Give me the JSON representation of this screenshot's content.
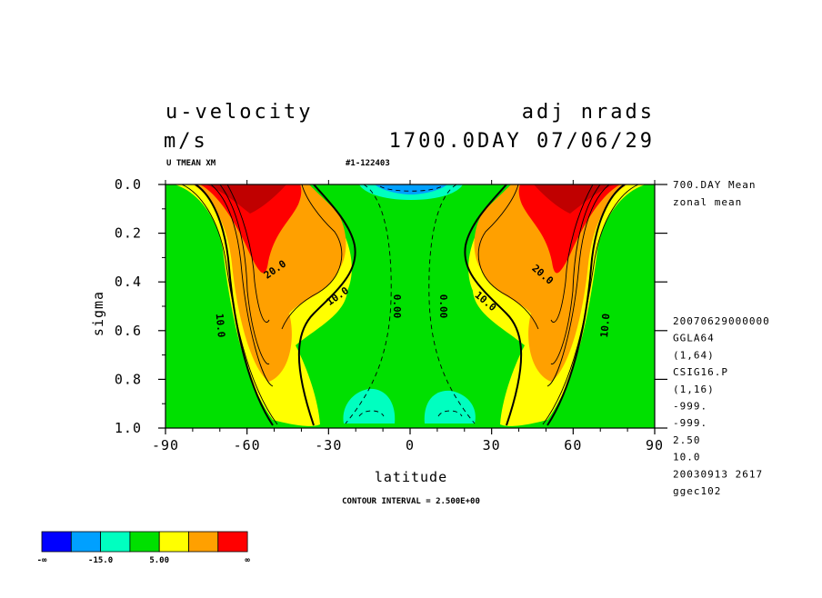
{
  "header": {
    "title": "u-velocity",
    "units": "m/s",
    "experiment": "adj nrads",
    "day_date": "1700.0DAY 07/06/29",
    "subtitle_left": "U TMEAN XM",
    "subtitle_mid": "#1-122403"
  },
  "side_info": {
    "top": [
      "700.DAY Mean",
      "zonal mean"
    ],
    "lines": [
      "20070629000000",
      "GGLA64",
      "(1,64)",
      "CSIG16.P",
      "(1,16)",
      "-999.",
      "-999.",
      "2.50",
      "10.0",
      "20030913    2617",
      "ggec102"
    ]
  },
  "footer": {
    "contour_interval": "CONTOUR INTERVAL = 2.500E+00"
  },
  "colorbar": {
    "colors": [
      "#0000ff",
      "#00a0ff",
      "#00ffc0",
      "#00e000",
      "#ffff00",
      "#ffa000",
      "#ff0000"
    ],
    "labels": [
      "-∞",
      "-15.0",
      "5.00",
      "∞"
    ]
  },
  "chart_data": {
    "type": "contour",
    "title": "u-velocity",
    "xlabel": "latitude",
    "ylabel": "sigma",
    "xlim": [
      -90,
      90
    ],
    "ylim": [
      0.0,
      1.0
    ],
    "y_inverted": true,
    "x_ticks": [
      -90,
      -60,
      -30,
      0,
      30,
      60,
      90
    ],
    "x_tick_labels": [
      "-90",
      "-60",
      "-30",
      "0",
      "30",
      "60",
      "90"
    ],
    "y_ticks": [
      0.0,
      0.2,
      0.4,
      0.6,
      0.8,
      1.0
    ],
    "y_tick_labels": [
      "0.0",
      "0.2",
      "0.4",
      "0.6",
      "0.8",
      "1.0"
    ],
    "contour_interval": 2.5,
    "contour_labels": [
      {
        "text": "20.0",
        "lat": -49,
        "sigma": 0.36
      },
      {
        "text": "10.0",
        "lat": -26,
        "sigma": 0.47
      },
      {
        "text": "10.0",
        "lat": -71,
        "sigma": 0.58
      },
      {
        "text": "0.00",
        "lat": -6,
        "sigma": 0.5
      },
      {
        "text": "0.00",
        "lat": 11,
        "sigma": 0.5
      },
      {
        "text": "10.0",
        "lat": 27,
        "sigma": 0.49
      },
      {
        "text": "20.0",
        "lat": 48,
        "sigma": 0.38
      },
      {
        "text": "10.0",
        "lat": 73,
        "sigma": 0.58
      }
    ],
    "jets": [
      {
        "lat": -55,
        "sigma": 0.03,
        "max_ms": 40
      },
      {
        "lat": 55,
        "sigma": 0.03,
        "max_ms": 40
      }
    ],
    "easterlies": [
      {
        "lat": 0,
        "sigma": 0.03,
        "min_ms": -10
      },
      {
        "lat": -17,
        "sigma": 0.95,
        "min_ms": -5
      },
      {
        "lat": 16,
        "sigma": 0.95,
        "min_ms": -5
      }
    ]
  }
}
